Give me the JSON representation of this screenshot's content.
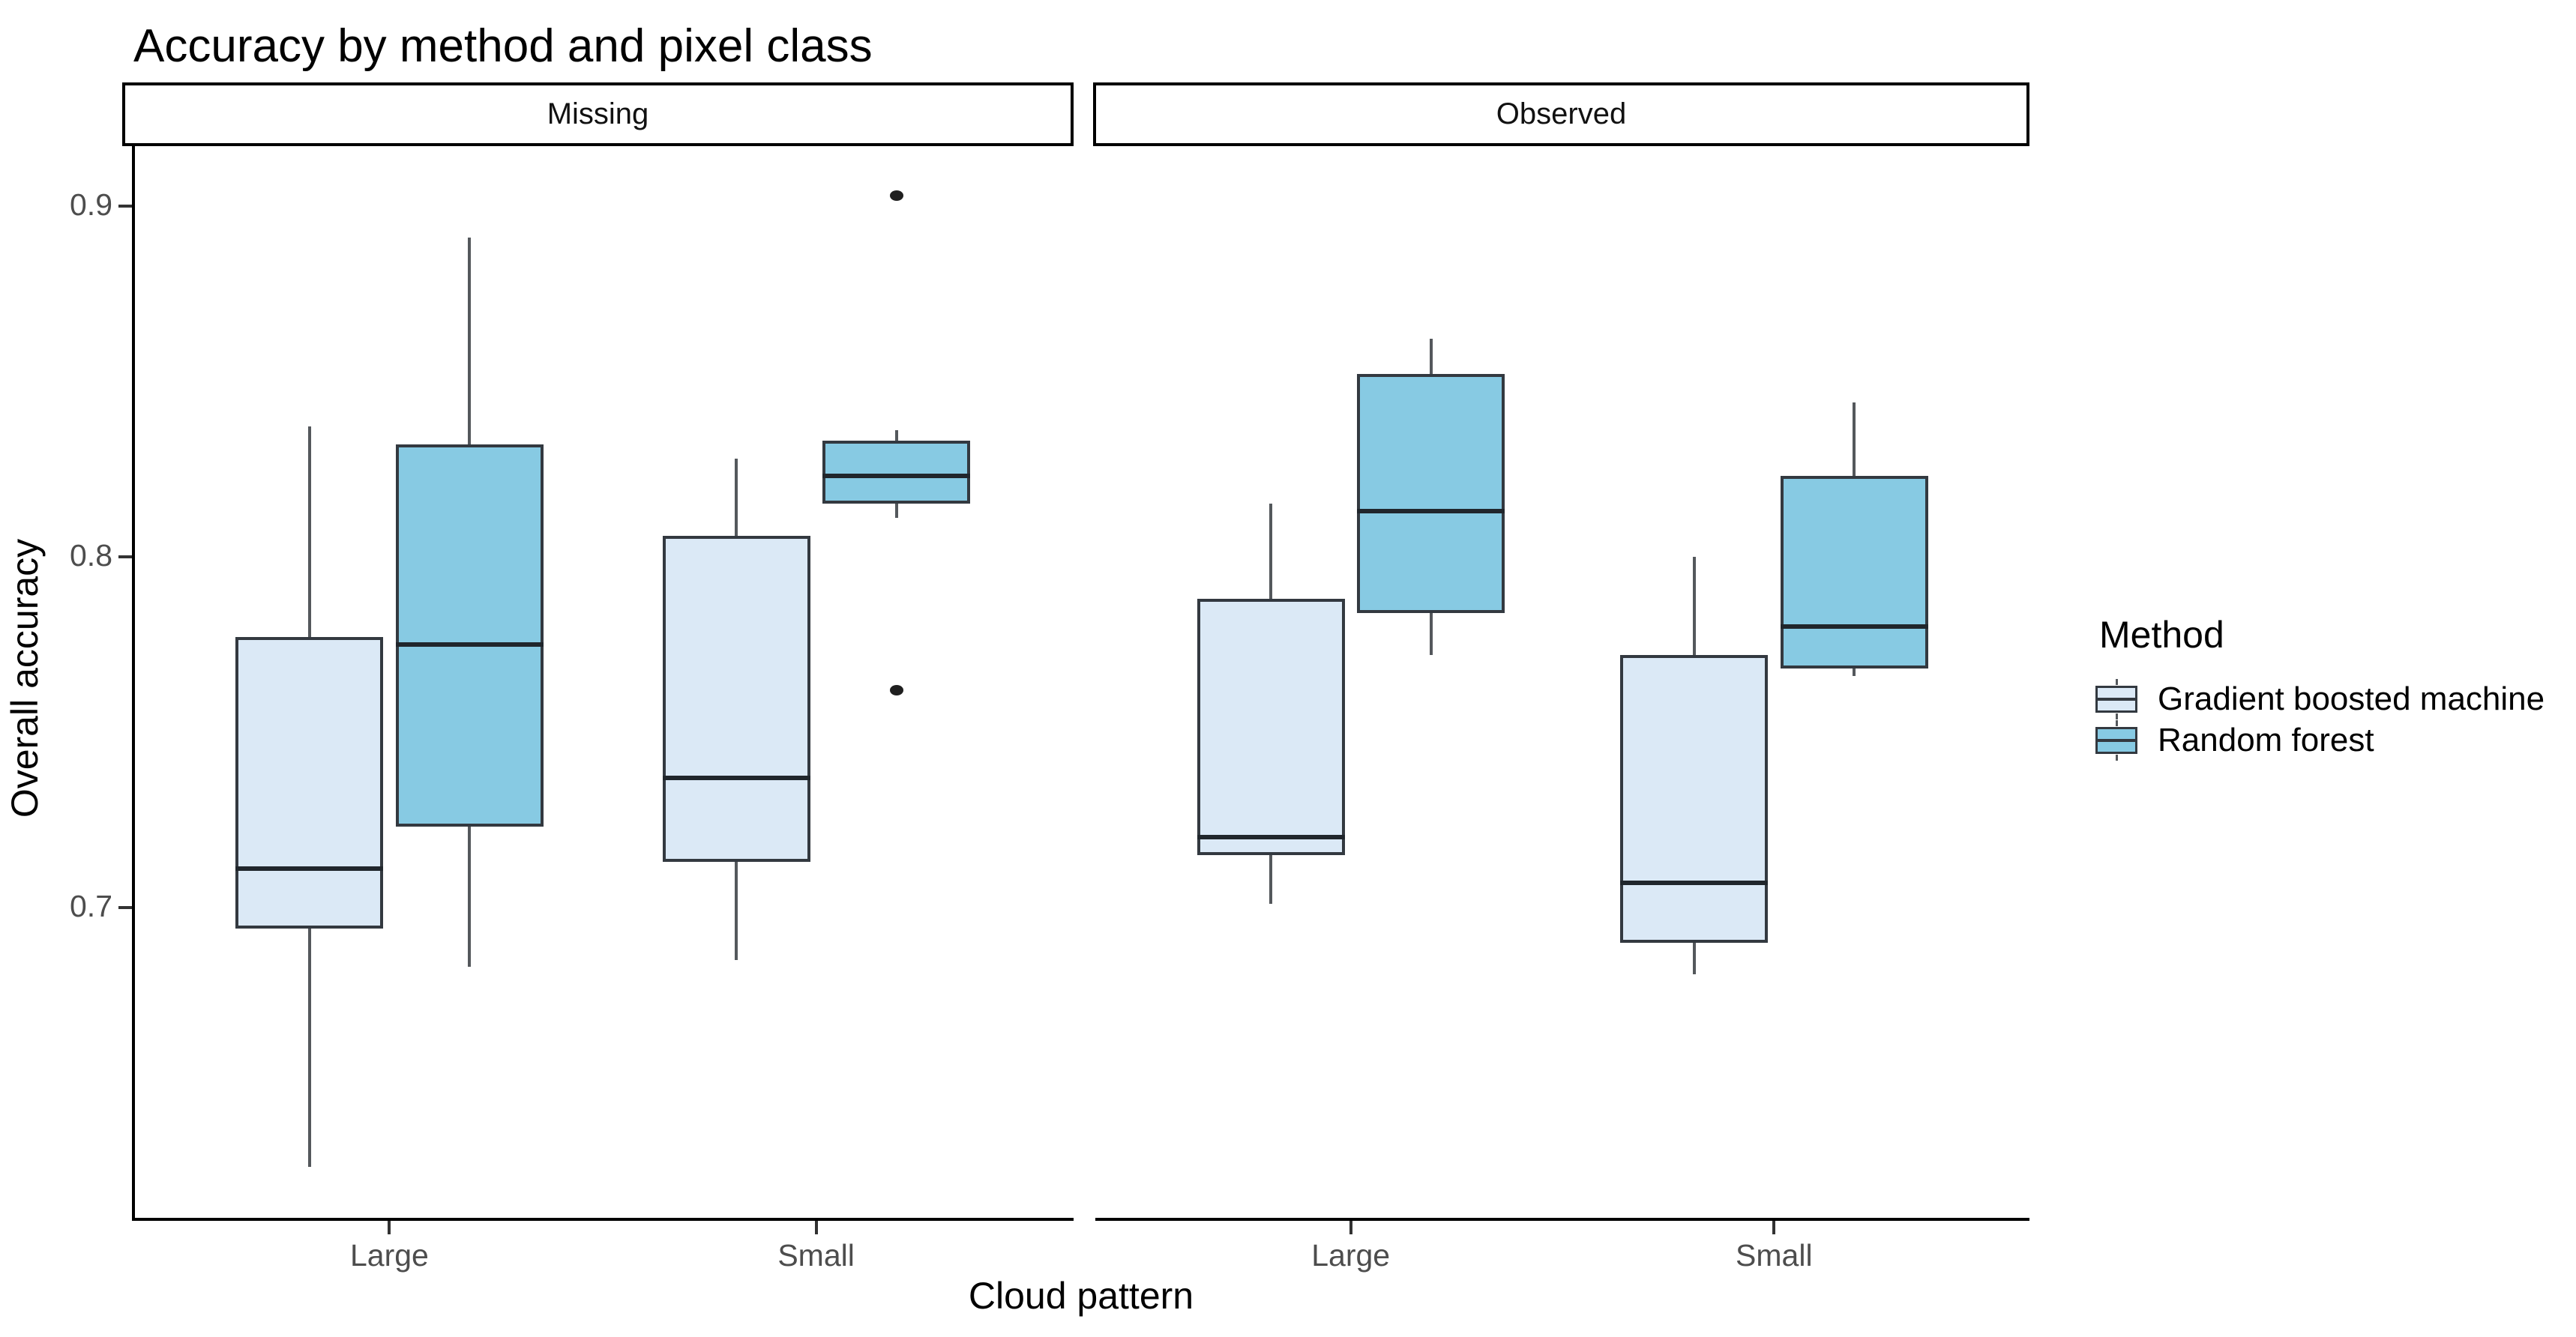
{
  "title": "Accuracy by method and pixel class",
  "legend": {
    "title": "Method",
    "entries": [
      {
        "label": "Gradient boosted machine"
      },
      {
        "label": "Random forest"
      }
    ]
  },
  "chart_data": {
    "type": "boxplot",
    "title": "Accuracy by method and pixel class",
    "xlabel": "Cloud pattern",
    "ylabel": "Overall accuracy",
    "facets": [
      "Missing",
      "Observed"
    ],
    "categories": [
      "Large",
      "Small"
    ],
    "methods": [
      {
        "name": "Gradient boosted machine",
        "fill": "#DBE9F6"
      },
      {
        "name": "Random forest",
        "fill": "#87CAE3"
      }
    ],
    "style": {
      "box_border": "#333940",
      "median_color": "#20262c",
      "whisker_color": "#54585c",
      "outlier_color": "#1f1f1f",
      "tick_color": "#333333",
      "tick_label_color": "#4d4d4d",
      "axis_color": "#000000"
    },
    "y_ticks": [
      {
        "label": "0.7",
        "value": 0.7
      },
      {
        "label": "0.8",
        "value": 0.8
      },
      {
        "label": "0.9",
        "value": 0.9
      }
    ],
    "ylim": [
      0.6115,
      0.917
    ],
    "legend_position": "right",
    "grid": false,
    "groups": [
      {
        "facet": "Missing",
        "category": "Large",
        "method": "Gradient boosted machine",
        "min": 0.626,
        "q1": 0.694,
        "median": 0.711,
        "q3": 0.777,
        "max": 0.837,
        "outliers": []
      },
      {
        "facet": "Missing",
        "category": "Large",
        "method": "Random forest",
        "min": 0.683,
        "q1": 0.723,
        "median": 0.775,
        "q3": 0.832,
        "max": 0.891,
        "outliers": []
      },
      {
        "facet": "Missing",
        "category": "Small",
        "method": "Gradient boosted machine",
        "min": 0.685,
        "q1": 0.713,
        "median": 0.737,
        "q3": 0.806,
        "max": 0.828,
        "outliers": []
      },
      {
        "facet": "Missing",
        "category": "Small",
        "method": "Random forest",
        "min": 0.811,
        "q1": 0.815,
        "median": 0.823,
        "q3": 0.833,
        "max": 0.836,
        "outliers": [
          0.903,
          0.762
        ]
      },
      {
        "facet": "Observed",
        "category": "Large",
        "method": "Gradient boosted machine",
        "min": 0.701,
        "q1": 0.715,
        "median": 0.72,
        "q3": 0.788,
        "max": 0.815,
        "outliers": []
      },
      {
        "facet": "Observed",
        "category": "Large",
        "method": "Random forest",
        "min": 0.772,
        "q1": 0.784,
        "median": 0.813,
        "q3": 0.852,
        "max": 0.862,
        "outliers": []
      },
      {
        "facet": "Observed",
        "category": "Small",
        "method": "Gradient boosted machine",
        "min": 0.681,
        "q1": 0.69,
        "median": 0.707,
        "q3": 0.772,
        "max": 0.8,
        "outliers": []
      },
      {
        "facet": "Observed",
        "category": "Small",
        "method": "Random forest",
        "min": 0.766,
        "q1": 0.768,
        "median": 0.78,
        "q3": 0.823,
        "max": 0.844,
        "outliers": []
      }
    ]
  }
}
